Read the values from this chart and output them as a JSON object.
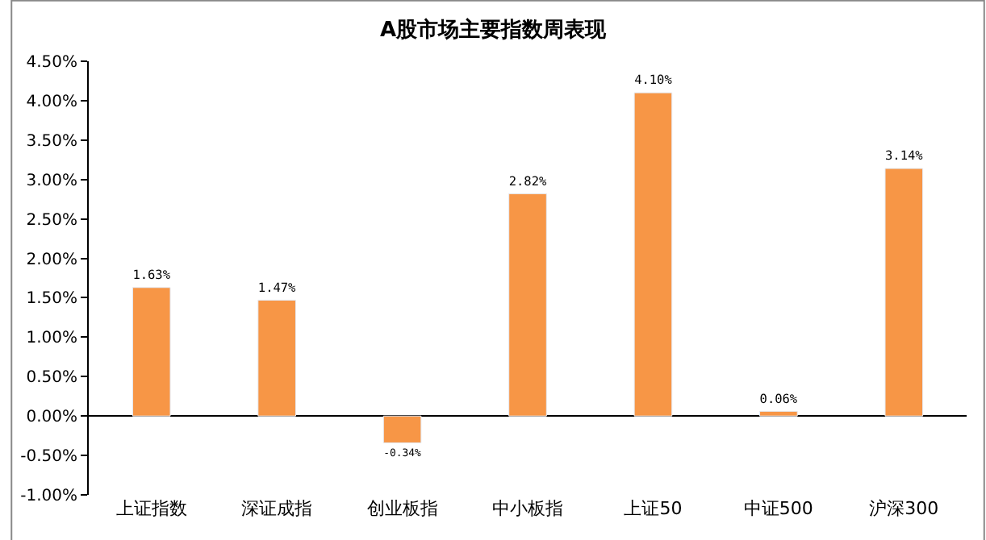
{
  "chart_data": {
    "type": "bar",
    "title": "A股市场主要指数周表现",
    "categories": [
      "上证指数",
      "深证成指",
      "创业板指",
      "中小板指",
      "上证50",
      "中证500",
      "沪深300"
    ],
    "values": [
      1.63,
      1.47,
      -0.34,
      2.82,
      4.1,
      0.06,
      3.14
    ],
    "value_labels": [
      "1.63%",
      "1.47%",
      "-0.34%",
      "2.82%",
      "4.10%",
      "0.06%",
      "3.14%"
    ],
    "color": "#f79646",
    "ylim": [
      -1.0,
      4.5
    ],
    "yticks": [
      {
        "value": -1.0,
        "label": "-1.00%"
      },
      {
        "value": -0.5,
        "label": "-0.50%"
      },
      {
        "value": 0.0,
        "label": "0.00%"
      },
      {
        "value": 0.5,
        "label": "0.50%"
      },
      {
        "value": 1.0,
        "label": "1.00%"
      },
      {
        "value": 1.5,
        "label": "1.50%"
      },
      {
        "value": 2.0,
        "label": "2.00%"
      },
      {
        "value": 2.5,
        "label": "2.50%"
      },
      {
        "value": 3.0,
        "label": "3.00%"
      },
      {
        "value": 3.5,
        "label": "3.50%"
      },
      {
        "value": 4.0,
        "label": "4.00%"
      },
      {
        "value": 4.5,
        "label": "4.50%"
      }
    ],
    "legend": false
  }
}
